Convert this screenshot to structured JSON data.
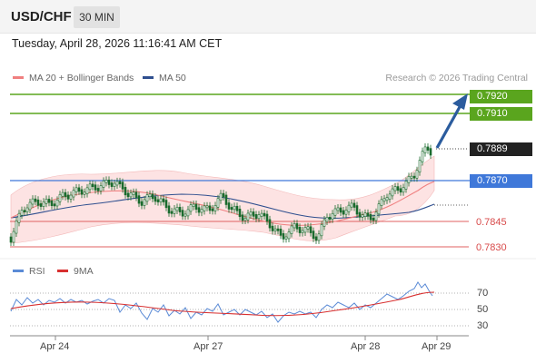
{
  "header": {
    "symbol": "USD/CHF",
    "timeframe": "30 MIN",
    "datetime": "Tuesday, April 28, 2026 11:16:41 AM CET"
  },
  "legend": {
    "ma20_label": "MA 20 + Bollinger Bands",
    "ma50_label": "MA 50",
    "credit": "Research © 2026 Trading Central"
  },
  "levels": {
    "r2": "0.7920",
    "r1": "0.7910",
    "last": "0.7889",
    "pivot": "0.7870",
    "s1": "0.7845",
    "s2": "0.7830"
  },
  "rsi_panel": {
    "rsi_label": "RSI",
    "ma_label": "9MA",
    "ticks": [
      "70",
      "50",
      "30"
    ]
  },
  "x_axis": {
    "dates": [
      "Apr 24",
      "Apr 27",
      "Apr 28",
      "Apr 29"
    ]
  },
  "colors": {
    "ma20": "#f08080",
    "ma50": "#2f4f8f",
    "bollinger_fill": "#fde3e3",
    "resistance": "#5aa51e",
    "pivot": "#3f78d9",
    "support": "#e06060",
    "last_price": "#222222",
    "arrow": "#2b5c9e",
    "candle": "#1b6b2e",
    "rsi": "#5b8bd6",
    "rsi_ma": "#d83030"
  }
}
